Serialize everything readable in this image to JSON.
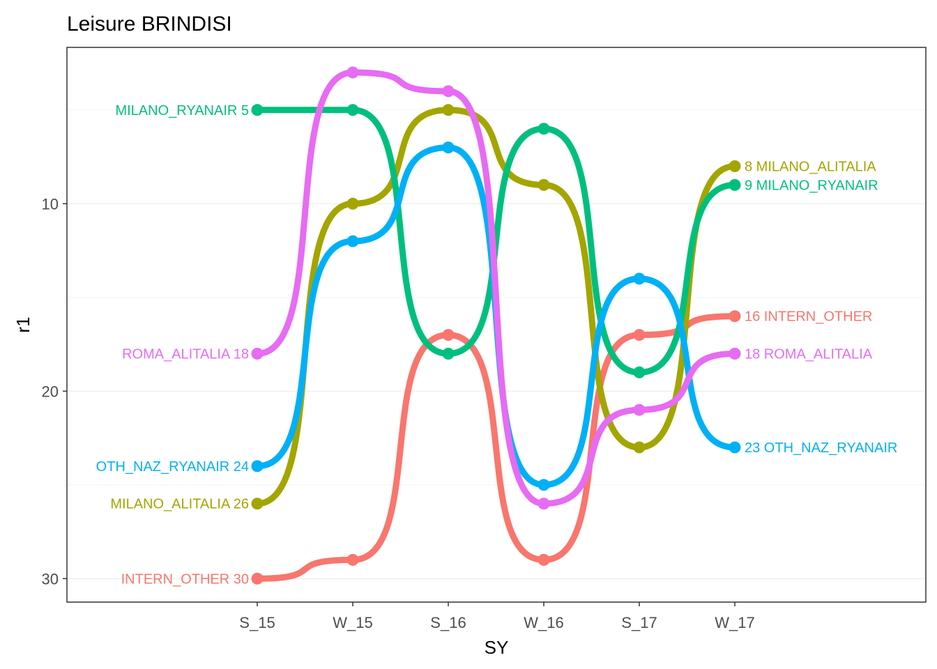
{
  "chart_data": {
    "type": "line",
    "title": "Leisure BRINDISI",
    "xlabel": "SY",
    "ylabel": "r1",
    "categories": [
      "S_15",
      "W_15",
      "S_16",
      "W_16",
      "S_17",
      "W_17"
    ],
    "y_axis": {
      "reversed": true,
      "ticks": [
        10,
        20,
        30
      ],
      "ylim": [
        1.2,
        31.2
      ]
    },
    "grid": true,
    "series": [
      {
        "name": "INTERN_OTHER",
        "color": "#F8766D",
        "values": [
          30,
          29,
          17,
          29,
          17,
          16
        ]
      },
      {
        "name": "MILANO_ALITALIA",
        "color": "#A3A500",
        "values": [
          26,
          10,
          5,
          9,
          23,
          8
        ]
      },
      {
        "name": "MILANO_RYANAIR",
        "color": "#00BF7D",
        "values": [
          5,
          5,
          18,
          6,
          19,
          9
        ]
      },
      {
        "name": "OTH_NAZ_RYANAIR",
        "color": "#00B0F6",
        "values": [
          24,
          12,
          7,
          25,
          14,
          23
        ]
      },
      {
        "name": "ROMA_ALITALIA",
        "color": "#E76BF3",
        "values": [
          18,
          3,
          4,
          26,
          21,
          18
        ]
      }
    ]
  }
}
